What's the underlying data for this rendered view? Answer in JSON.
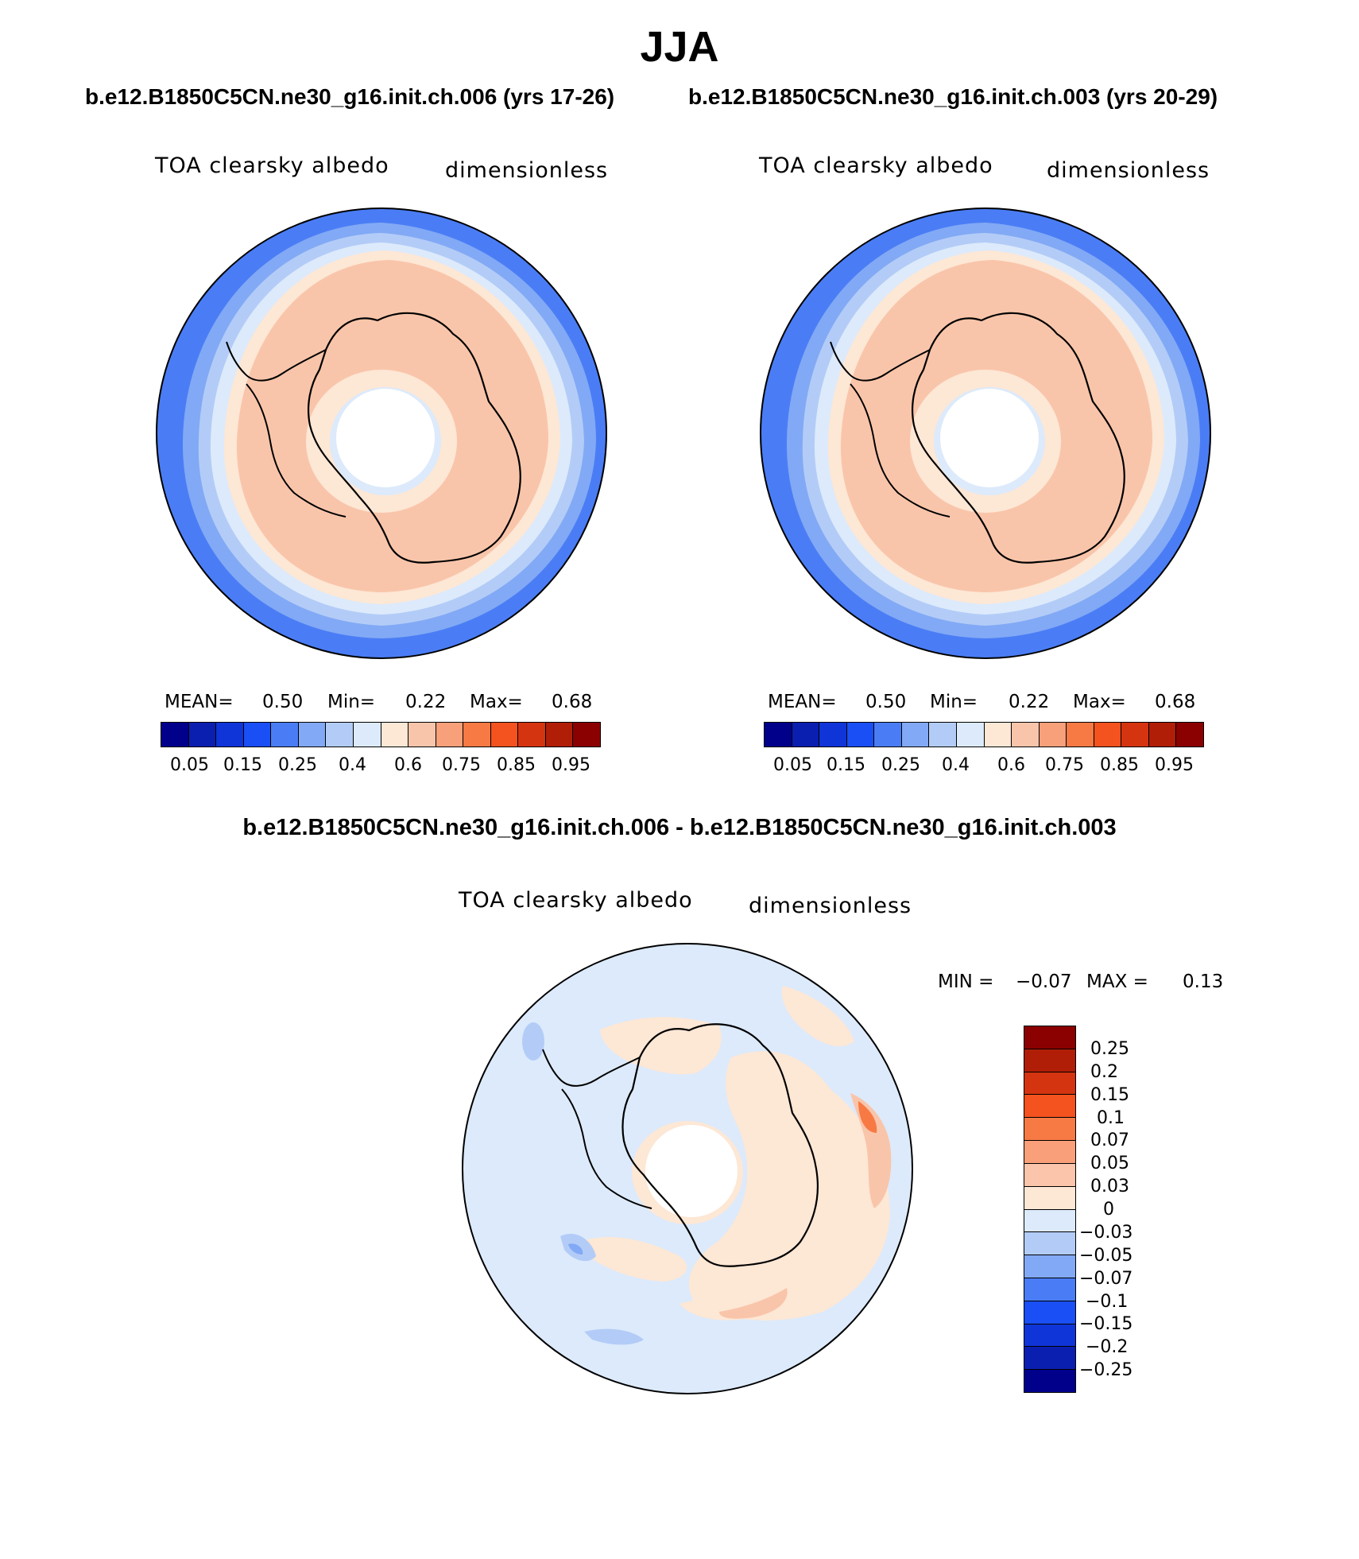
{
  "title": "JJA",
  "panels": [
    {
      "case_title": "b.e12.B1850C5CN.ne30_g16.init.ch.006 (yrs 17-26)",
      "left_label": "TOA clearsky albedo",
      "right_label": "dimensionless",
      "stats": {
        "mean_label": "MEAN=",
        "mean": "0.50",
        "min_label": "Min=",
        "min": "0.22",
        "max_label": "Max=",
        "max": "0.68"
      },
      "colorbar_labels": [
        "0.05",
        "0.15",
        "0.25",
        "0.4",
        "0.6",
        "0.75",
        "0.85",
        "0.95"
      ]
    },
    {
      "case_title": "b.e12.B1850C5CN.ne30_g16.init.ch.003 (yrs 20-29)",
      "left_label": "TOA clearsky albedo",
      "right_label": "dimensionless",
      "stats": {
        "mean_label": "MEAN=",
        "mean": "0.50",
        "min_label": "Min=",
        "min": "0.22",
        "max_label": "Max=",
        "max": "0.68"
      },
      "colorbar_labels": [
        "0.05",
        "0.15",
        "0.25",
        "0.4",
        "0.6",
        "0.75",
        "0.85",
        "0.95"
      ]
    }
  ],
  "difference": {
    "title": "b.e12.B1850C5CN.ne30_g16.init.ch.006 - b.e12.B1850C5CN.ne30_g16.init.ch.003",
    "left_label": "TOA clearsky albedo",
    "right_label": "dimensionless",
    "min_label": "MIN =",
    "min": "−0.07",
    "max_label": "MAX =",
    "max": "0.13",
    "colorbar_labels": [
      "0.25",
      "0.2",
      "0.15",
      "0.1",
      "0.07",
      "0.05",
      "0.03",
      "0",
      "−0.03",
      "−0.05",
      "−0.07",
      "−0.1",
      "−0.15",
      "−0.2",
      "−0.25"
    ]
  },
  "colors": {
    "abs_scale": [
      "#00008b",
      "#0a1fb0",
      "#0f35d8",
      "#1a4ff5",
      "#4a7df5",
      "#82a9f5",
      "#b3ccf7",
      "#dceafb",
      "#fde7d5",
      "#f9c5aa",
      "#f7a07a",
      "#f77a45",
      "#f4521e",
      "#d43410",
      "#b01e08",
      "#8b0000"
    ],
    "diff_scale": [
      "#8b0000",
      "#b01e08",
      "#d43410",
      "#f4521e",
      "#f77a45",
      "#f9a07a",
      "#fac5aa",
      "#fde7d5",
      "#dceafb",
      "#b3ccf7",
      "#82a9f5",
      "#4a7df5",
      "#1a4ff5",
      "#0f35d8",
      "#0a1fb0",
      "#00008b"
    ]
  }
}
